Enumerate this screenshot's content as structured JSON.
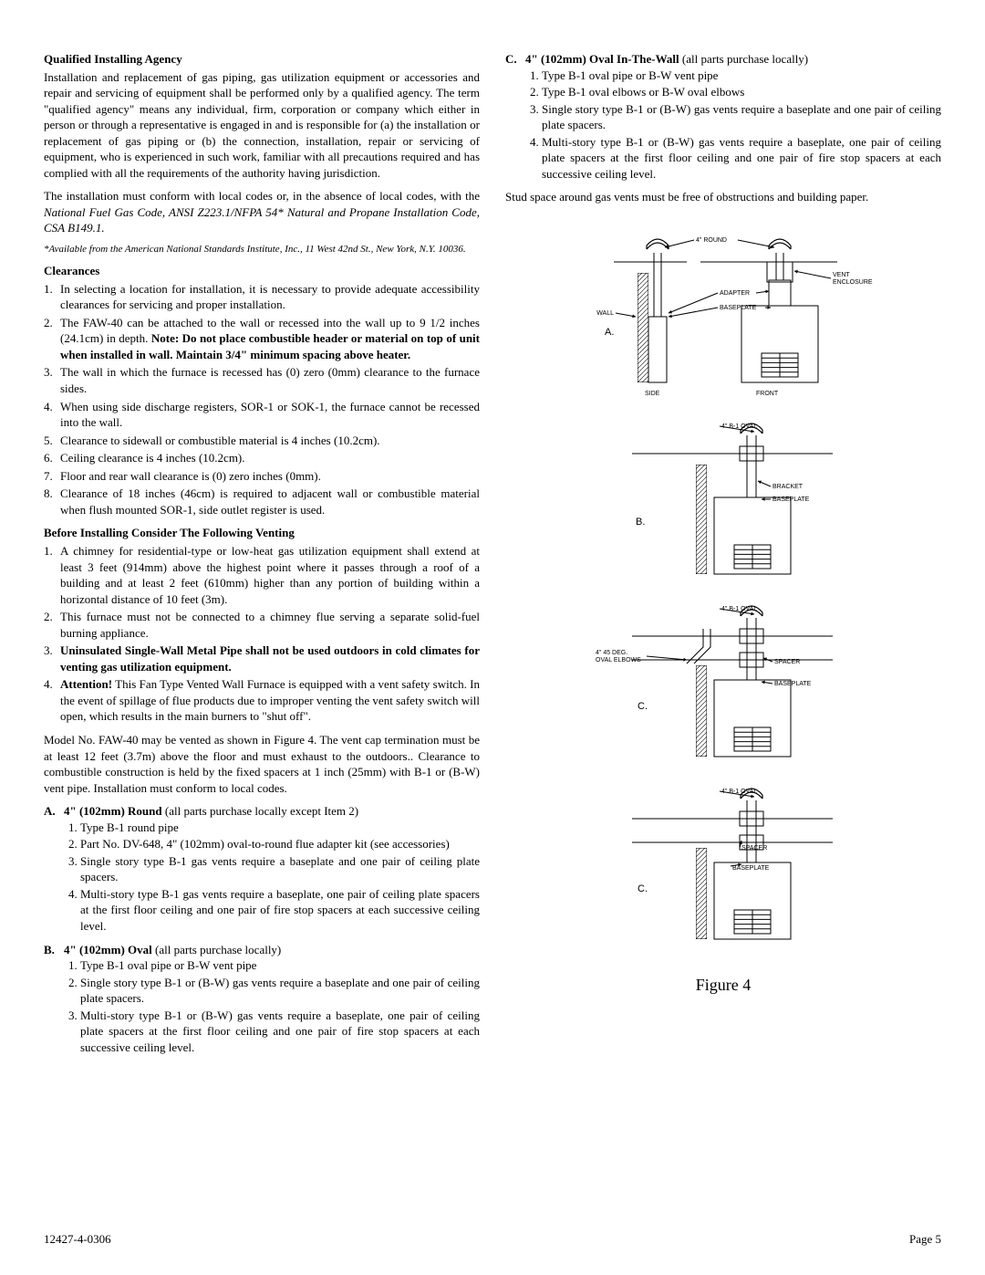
{
  "left": {
    "h1": "Qualified Installing Agency",
    "p1": "Installation and replacement of gas piping, gas utilization equipment or accessories and repair and servicing of equipment shall be performed only by a qualified agency. The term \"qualified agency\" means any individual, firm, corporation or company which either in person or through a representative is engaged in and is responsible for (a) the installation or replacement of gas piping or (b) the connection, installation, repair or servicing of equipment, who is experienced in such work, familiar with all precautions required and has complied with all the requirements of the authority having jurisdiction.",
    "p2a": "The installation must conform with local codes or, in the absence of local codes, with the ",
    "p2b": "National Fuel Gas Code, ANSI Z223.1/NFPA 54* Natural and Propane Installation Code, CSA B149.1.",
    "p3": "*Available from the American National Standards Institute, Inc., 11 West 42nd St., New York, N.Y. 10036.",
    "h2": "Clearances",
    "cl": [
      "In selecting a location for installation, it is necessary to provide adequate accessibility clearances for servicing and proper installation.",
      "The FAW-40 can be attached to the wall or recessed into the wall up to 9 1/2 inches (24.1cm) in depth. <b>Note: Do not place combustible header or material on top of unit when installed in wall. Maintain 3/4\" minimum spacing above heater.</b>",
      "The wall in which the furnace is recessed has (0) zero (0mm) clearance to the furnace sides.",
      "When using side discharge registers, SOR-1 or SOK-1, the furnace cannot be recessed into the wall.",
      "Clearance to sidewall or combustible material is 4 inches (10.2cm).",
      "Ceiling clearance is 4 inches (10.2cm).",
      "Floor and rear wall clearance is (0) zero inches (0mm).",
      "Clearance of 18 inches (46cm) is required to adjacent wall or combustible material when flush mounted SOR-1, side outlet register is used."
    ],
    "h3": "Before Installing Consider The Following Venting",
    "vt": [
      "A chimney for residential-type or low-heat gas utilization equipment shall extend at least 3 feet (914mm) above the highest point where it passes through a roof of a building and at least 2 feet (610mm) higher than any portion of building within a horizontal distance of 10 feet (3m).",
      "This furnace must not be connected to a chimney flue serving a separate solid-fuel burning appliance.",
      "<b>Uninsulated Single-Wall Metal Pipe shall not be used outdoors in cold climates for venting gas utilization equipment.</b>",
      "<b>Attention!</b> This Fan Type Vented Wall Furnace is equipped with a vent safety switch. In the event of spillage of flue products due to improper venting the vent safety switch will open, which results in the main burners to \"shut off\"."
    ],
    "p4": "Model No. FAW-40 may be vented as shown in Figure 4. The vent cap termination must be at least 12 feet (3.7m) above the floor and must exhaust to the outdoors.. Clearance to combustible construction is held by the fixed spacers at 1 inch (25mm) with B-1 or (B-W) vent pipe. Installation must conform to local codes.",
    "A": {
      "head": "4\" (102mm) Round",
      "tail": " (all parts purchase locally except Item 2)",
      "items": [
        "Type B-1 round pipe",
        "Part No. DV-648, 4\" (102mm) oval-to-round flue adapter kit (see accessories)",
        "Single story type B-1 gas vents require a baseplate and one pair of ceiling plate spacers.",
        "Multi-story type B-1 gas vents require a baseplate, one pair of ceiling plate spacers at the first floor ceiling and one pair of fire stop spacers at each successive ceiling level."
      ]
    },
    "B": {
      "head": "4\" (102mm) Oval",
      "tail": " (all parts purchase locally)",
      "items": [
        "Type B-1 oval pipe or B-W vent pipe",
        "Single story type B-1 or (B-W) gas vents require a baseplate and one pair of ceiling plate spacers.",
        "Multi-story type B-1 or (B-W) gas vents require a baseplate, one pair of ceiling plate spacers at the first floor ceiling and one pair of fire stop spacers at each successive ceiling level."
      ]
    }
  },
  "right": {
    "C": {
      "head": "4\" (102mm) Oval In-The-Wall",
      "tail": " (all parts purchase locally)",
      "items": [
        "Type B-1 oval pipe or B-W vent pipe",
        "Type B-1 oval elbows or B-W oval elbows",
        "Single story type B-1 or (B-W) gas vents require a baseplate and one pair of ceiling plate spacers.",
        "Multi-story type B-1 or (B-W) gas vents require a baseplate, one pair of ceiling plate spacers at the first floor ceiling and one pair of fire stop spacers at each successive ceiling level."
      ]
    },
    "p1": "Stud space around gas vents must be free of obstructions and building paper.",
    "labels": {
      "round": "4\" ROUND",
      "vent_enclosure": "VENT\nENCLOSURE",
      "adapter": "ADAPTER",
      "baseplate": "BASEPLATE",
      "wall": "WALL",
      "side": "SIDE",
      "front": "FRONT",
      "oval": "4\" B-1 OVAL",
      "bracket": "BRACKET",
      "spacer": "SPACER",
      "elbows": "4\" 45 DEG.\nOVAL ELBOWS",
      "A": "A.",
      "B": "B.",
      "C": "C."
    },
    "figcap": "Figure 4"
  },
  "footer": {
    "left": "12427-4-0306",
    "right": "Page 5"
  },
  "style": {
    "stroke": "#000000",
    "hatch_stroke": "#000000",
    "label_font": "7px Arial, Helvetica, sans-serif",
    "panel_label_font": "11px Arial, Helvetica, sans-serif"
  }
}
